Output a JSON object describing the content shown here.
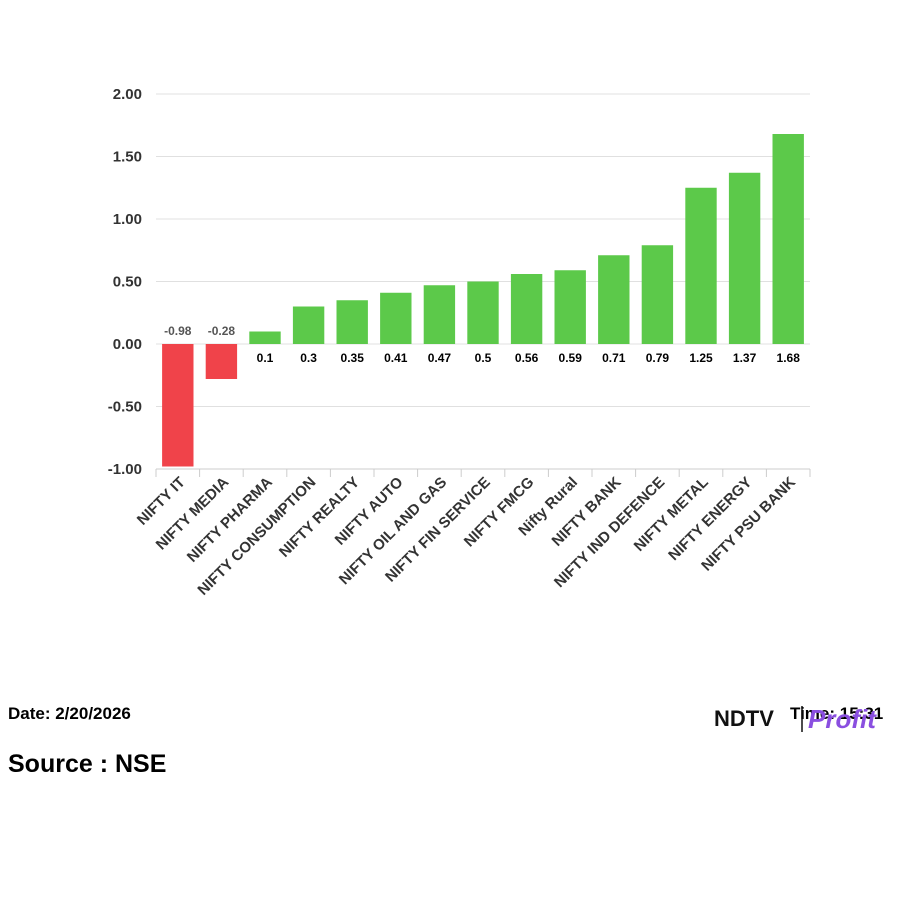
{
  "chart_data": {
    "type": "bar",
    "categories": [
      "NIFTY IT",
      "NIFTY MEDIA",
      "NIFTY PHARMA",
      "NIFTY CONSUMPTION",
      "NIFTY REALTY",
      "NIFTY AUTO",
      "NIFTY OIL AND GAS",
      "NIFTY FIN SERVICE",
      "NIFTY FMCG",
      "Nifty Rural",
      "NIFTY BANK",
      "NIFTY IND DEFENCE",
      "NIFTY METAL",
      "NIFTY ENERGY",
      "NIFTY PSU BANK"
    ],
    "values": [
      -0.98,
      -0.28,
      0.1,
      0.3,
      0.35,
      0.41,
      0.47,
      0.5,
      0.56,
      0.59,
      0.71,
      0.79,
      1.25,
      1.37,
      1.68
    ],
    "ylim": [
      -1.0,
      2.0
    ],
    "yticks": [
      "2.00",
      "1.50",
      "1.00",
      "0.50",
      "0.00",
      "-0.50",
      "-1.00"
    ],
    "grid": true,
    "colors": {
      "positive": "#5cc94a",
      "negative": "#f0434a"
    }
  },
  "footer": {
    "date": "Date: 2/20/2026",
    "source": "Source : NSE",
    "time": "Time: 15:31"
  },
  "logo": {
    "name": "ndtv-profit-logo",
    "text_ndtv": "NDTV",
    "text_profit": "Profit"
  }
}
